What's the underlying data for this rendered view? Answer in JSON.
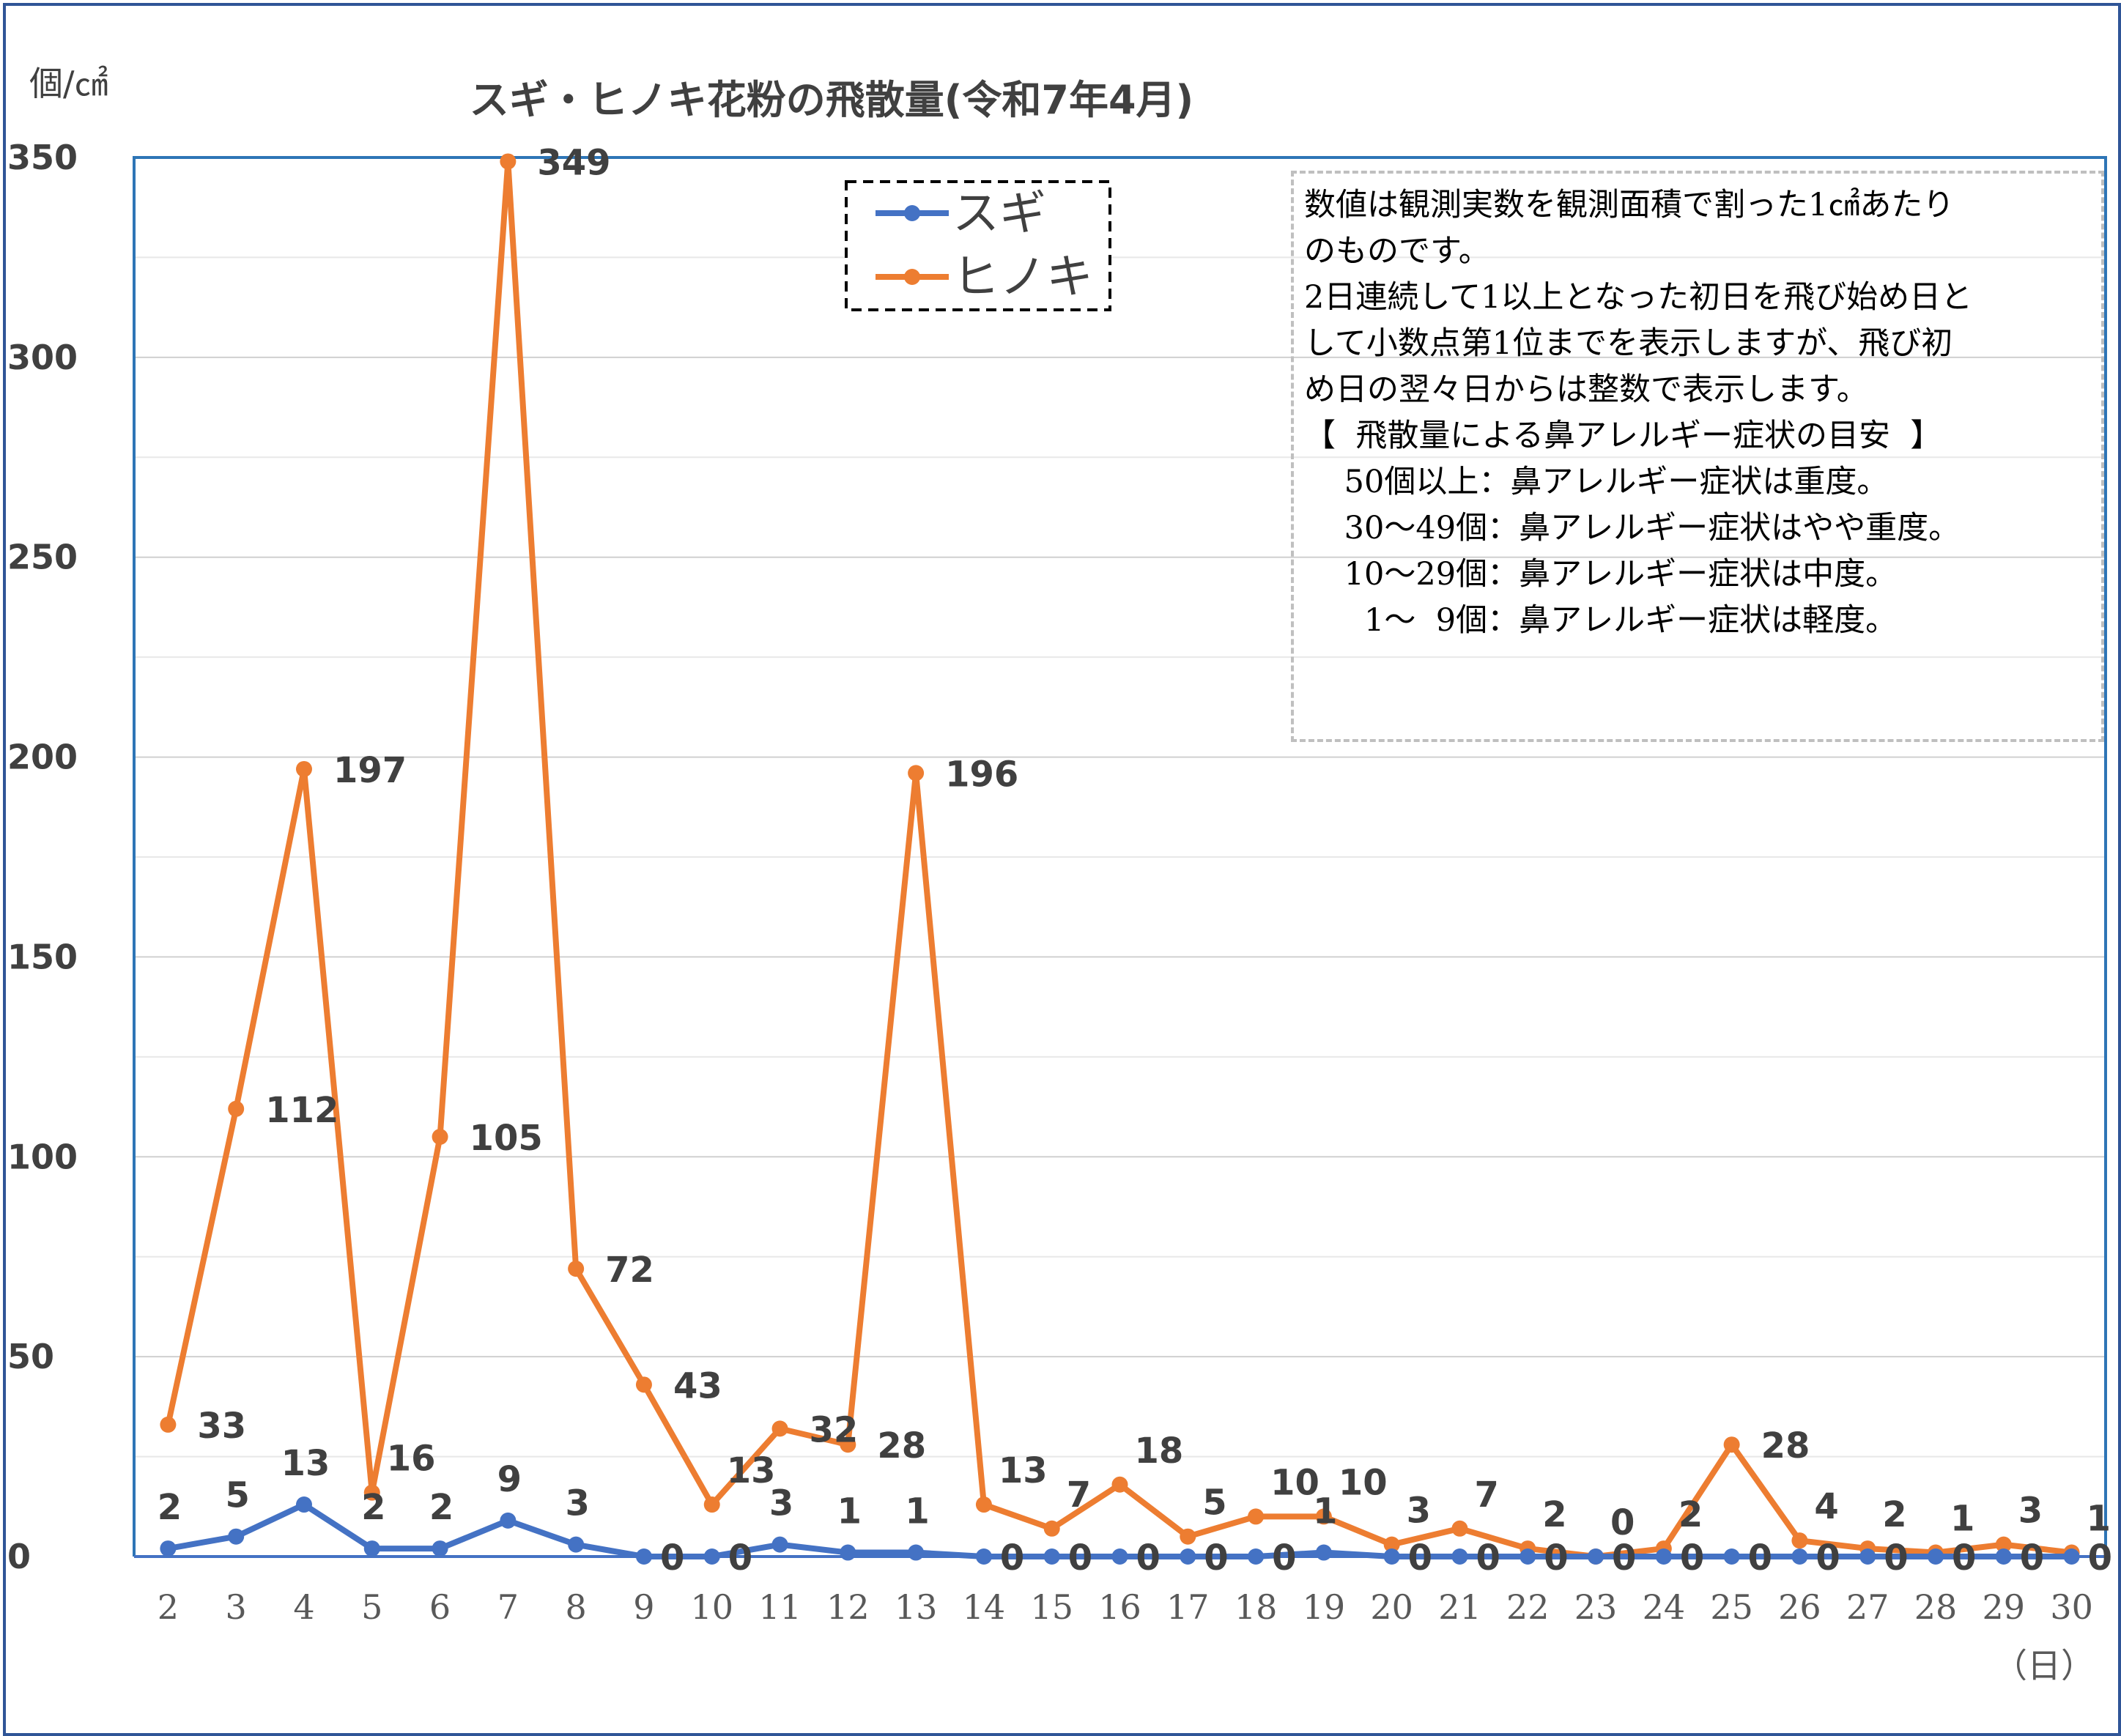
{
  "title": "スギ・ヒノキ花粉の飛散量(令和7年4月)",
  "y_unit": "個/㎠",
  "x_unit": "（日）",
  "notes": [
    "数値は観測実数を観測面積で割った1㎠あたり",
    "のものです。",
    "2日連続して1以上となった初日を飛び始め日と",
    "して小数点第1位までを表示しますが、飛び初",
    "め日の翌々日からは整数で表示します。",
    "【  飛散量による鼻アレルギー症状の目安  】",
    "    50個以上：鼻アレルギー症状は重度。",
    "    30～49個：鼻アレルギー症状はやや重度。",
    "    10～29個：鼻アレルギー症状は中度。",
    "      1～  9個：鼻アレルギー症状は軽度。"
  ],
  "chart_data": {
    "type": "line",
    "title": "スギ・ヒノキ花粉の飛散量(令和7年4月)",
    "ylabel": "個/㎠",
    "xlabel": "（日）",
    "ylim": [
      0,
      350
    ],
    "yticks": [
      0,
      50,
      100,
      150,
      200,
      250,
      300,
      350
    ],
    "grid": "horizontal",
    "legend_position": "top-center",
    "categories": [
      "2",
      "3",
      "4",
      "5",
      "6",
      "7",
      "8",
      "9",
      "10",
      "11",
      "12",
      "13",
      "14",
      "15",
      "16",
      "17",
      "18",
      "19",
      "20",
      "21",
      "22",
      "23",
      "24",
      "25",
      "26",
      "27",
      "28",
      "29",
      "30"
    ],
    "series": [
      {
        "name": "スギ",
        "color": "#4472c4",
        "values": [
          2,
          5,
          13,
          2,
          2,
          9,
          3,
          0,
          0,
          3,
          1,
          1,
          0,
          0,
          0,
          0,
          0,
          1,
          0,
          0,
          0,
          0,
          0,
          0,
          0,
          0,
          0,
          0,
          0
        ]
      },
      {
        "name": "ヒノキ",
        "color": "#ed7d31",
        "values": [
          33,
          112,
          197,
          16,
          105,
          349,
          72,
          43,
          13,
          32,
          28,
          196,
          13,
          7,
          18,
          5,
          10,
          10,
          3,
          7,
          2,
          0,
          2,
          28,
          4,
          2,
          1,
          3,
          1
        ]
      }
    ]
  }
}
